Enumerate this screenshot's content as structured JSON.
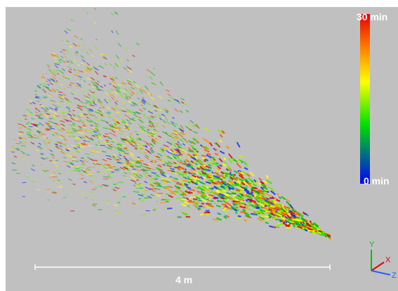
{
  "colorbar": {
    "max_label": "30 min",
    "min_label": "0 min"
  },
  "scale_bar": {
    "label": "4 m"
  },
  "axes": {
    "y": "Y",
    "x": "X",
    "z": "Z"
  }
}
